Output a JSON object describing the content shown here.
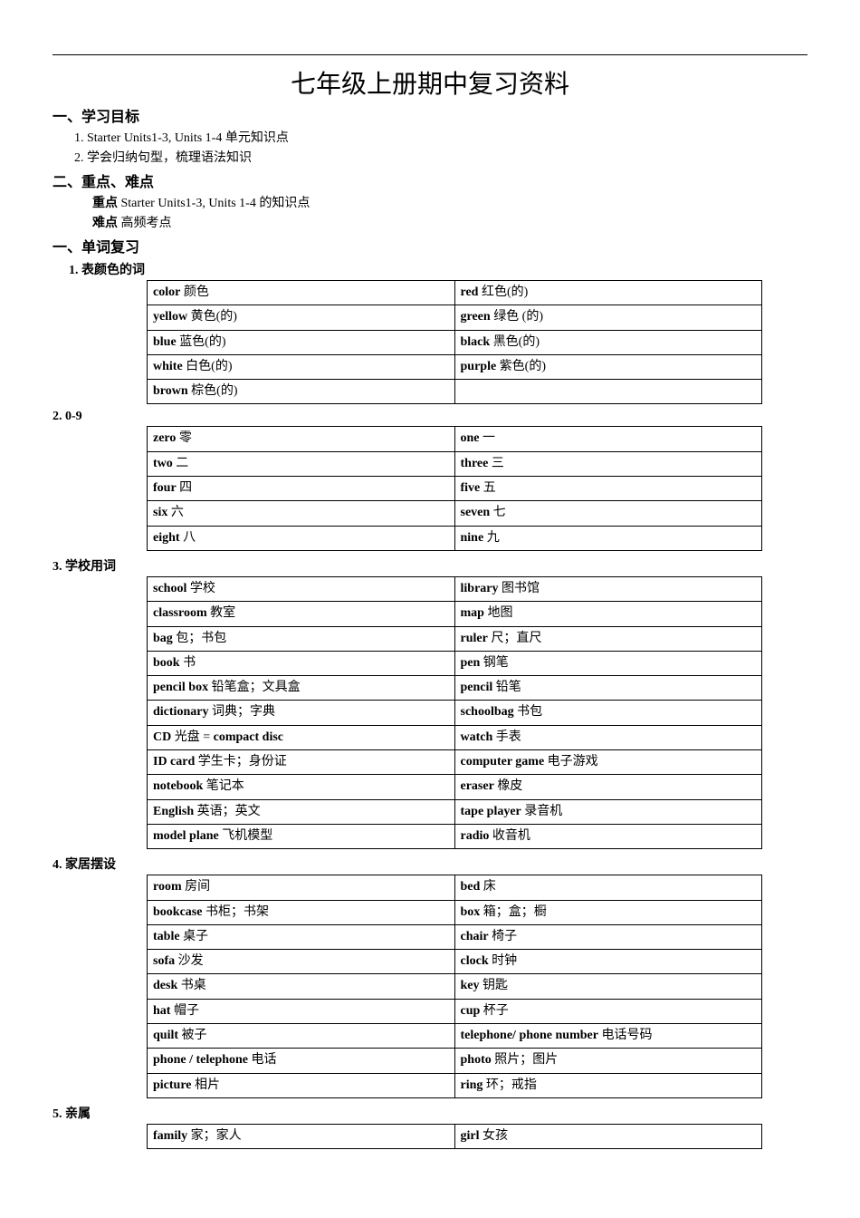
{
  "title": "七年级上册期中复习资料",
  "sectionA": {
    "heading": "一、学习目标",
    "item1_prefix": "1. ",
    "item1_eng": "Starter Units1-3, Units 1-4 ",
    "item1_chi": "单元知识点",
    "item2": "2. 学会归纳句型，梳理语法知识"
  },
  "sectionB": {
    "heading": "二、重点、难点",
    "row1_label": "重点",
    "row1_eng": " Starter Units1-3, Units 1-4 ",
    "row1_chi": "的知识点",
    "row2_label": "难点",
    "row2_text": " 高频考点"
  },
  "sectionC": {
    "heading": "一、单词复习"
  },
  "groups": {
    "g1": {
      "label": "1. 表颜色的词",
      "rows": [
        [
          {
            "eng": "color",
            "chi": " 颜色"
          },
          {
            "eng": "red",
            "chi": " 红色(的)"
          }
        ],
        [
          {
            "eng": "yellow",
            "chi": " 黄色(的)"
          },
          {
            "eng": "green",
            "chi": " 绿色 (的)"
          }
        ],
        [
          {
            "eng": "blue",
            "chi": " 蓝色(的)"
          },
          {
            "eng": "black",
            "chi": " 黑色(的)"
          }
        ],
        [
          {
            "eng": "white",
            "chi": " 白色(的)"
          },
          {
            "eng": "purple",
            "chi": " 紫色(的)"
          }
        ],
        [
          {
            "eng": "brown",
            "chi": " 棕色(的)"
          },
          {
            "eng": "",
            "chi": ""
          }
        ]
      ]
    },
    "g2": {
      "label": "2. 0-9",
      "rows": [
        [
          {
            "eng": "zero",
            "chi": " 零"
          },
          {
            "eng": "one",
            "chi": " 一"
          }
        ],
        [
          {
            "eng": "two",
            "chi": " 二"
          },
          {
            "eng": "three",
            "chi": " 三"
          }
        ],
        [
          {
            "eng": "four",
            "chi": " 四"
          },
          {
            "eng": "five",
            "chi": " 五"
          }
        ],
        [
          {
            "eng": "six",
            "chi": " 六"
          },
          {
            "eng": "seven",
            "chi": " 七"
          }
        ],
        [
          {
            "eng": "eight",
            "chi": " 八"
          },
          {
            "eng": "nine",
            "chi": " 九"
          }
        ]
      ]
    },
    "g3": {
      "label": "3. 学校用词",
      "rows": [
        [
          {
            "eng": "school",
            "chi": " 学校"
          },
          {
            "eng": "library",
            "chi": " 图书馆"
          }
        ],
        [
          {
            "eng": "classroom",
            "chi": " 教室"
          },
          {
            "eng": "map",
            "chi": " 地图"
          }
        ],
        [
          {
            "eng": "bag",
            "chi": " 包；书包"
          },
          {
            "eng": "ruler",
            "chi": " 尺；直尺"
          }
        ],
        [
          {
            "eng": "book",
            "chi": " 书"
          },
          {
            "eng": "pen",
            "chi": " 钢笔"
          }
        ],
        [
          {
            "eng": "pencil box",
            "chi": " 铅笔盒；文具盒"
          },
          {
            "eng": "pencil",
            "chi": " 铅笔"
          }
        ],
        [
          {
            "eng": "dictionary",
            "chi": " 词典；字典"
          },
          {
            "eng": "schoolbag",
            "chi": " 书包"
          }
        ],
        [
          {
            "eng": "CD",
            "chi": " 光盘 = ",
            "extra_eng": "compact disc"
          },
          {
            "eng": "watch",
            "chi": " 手表"
          }
        ],
        [
          {
            "eng": "ID card",
            "chi": " 学生卡；身份证"
          },
          {
            "eng": "computer game",
            "chi": " 电子游戏"
          }
        ],
        [
          {
            "eng": "notebook",
            "chi": " 笔记本"
          },
          {
            "eng": "eraser",
            "chi": " 橡皮"
          }
        ],
        [
          {
            "eng": "English",
            "chi": " 英语；英文"
          },
          {
            "eng": "tape player",
            "chi": " 录音机"
          }
        ],
        [
          {
            "eng": "model plane",
            "chi": "  飞机模型"
          },
          {
            "eng": "radio",
            "chi": " 收音机"
          }
        ]
      ]
    },
    "g4": {
      "label": "4. 家居摆设",
      "rows": [
        [
          {
            "eng": "room",
            "chi": " 房间"
          },
          {
            "eng": "bed",
            "chi": " 床"
          }
        ],
        [
          {
            "eng": "bookcase",
            "chi": " 书柜；书架"
          },
          {
            "eng": "box",
            "chi": " 箱；盒；橱"
          }
        ],
        [
          {
            "eng": "table",
            "chi": " 桌子"
          },
          {
            "eng": "chair",
            "chi": " 椅子"
          }
        ],
        [
          {
            "eng": "sofa",
            "chi": " 沙发"
          },
          {
            "eng": "clock",
            "chi": " 时钟"
          }
        ],
        [
          {
            "eng": "desk",
            "chi": " 书桌"
          },
          {
            "eng": "key",
            "chi": " 钥匙"
          }
        ],
        [
          {
            "eng": "hat",
            "chi": " 帽子"
          },
          {
            "eng": "cup",
            "chi": " 杯子"
          }
        ],
        [
          {
            "eng": "quilt",
            "chi": " 被子"
          },
          {
            "eng": "telephone/ phone number",
            "chi": " 电话号码"
          }
        ],
        [
          {
            "eng": "phone / telephone",
            "chi": " 电话"
          },
          {
            "eng": "photo",
            "chi": " 照片；图片"
          }
        ],
        [
          {
            "eng": "picture",
            "chi": " 相片"
          },
          {
            "eng": "ring",
            "chi": " 环；戒指"
          }
        ]
      ]
    },
    "g5": {
      "label": "5. 亲属",
      "rows": [
        [
          {
            "eng": "family",
            "chi": " 家；家人"
          },
          {
            "eng": "girl",
            "chi": " 女孩"
          }
        ]
      ]
    }
  }
}
